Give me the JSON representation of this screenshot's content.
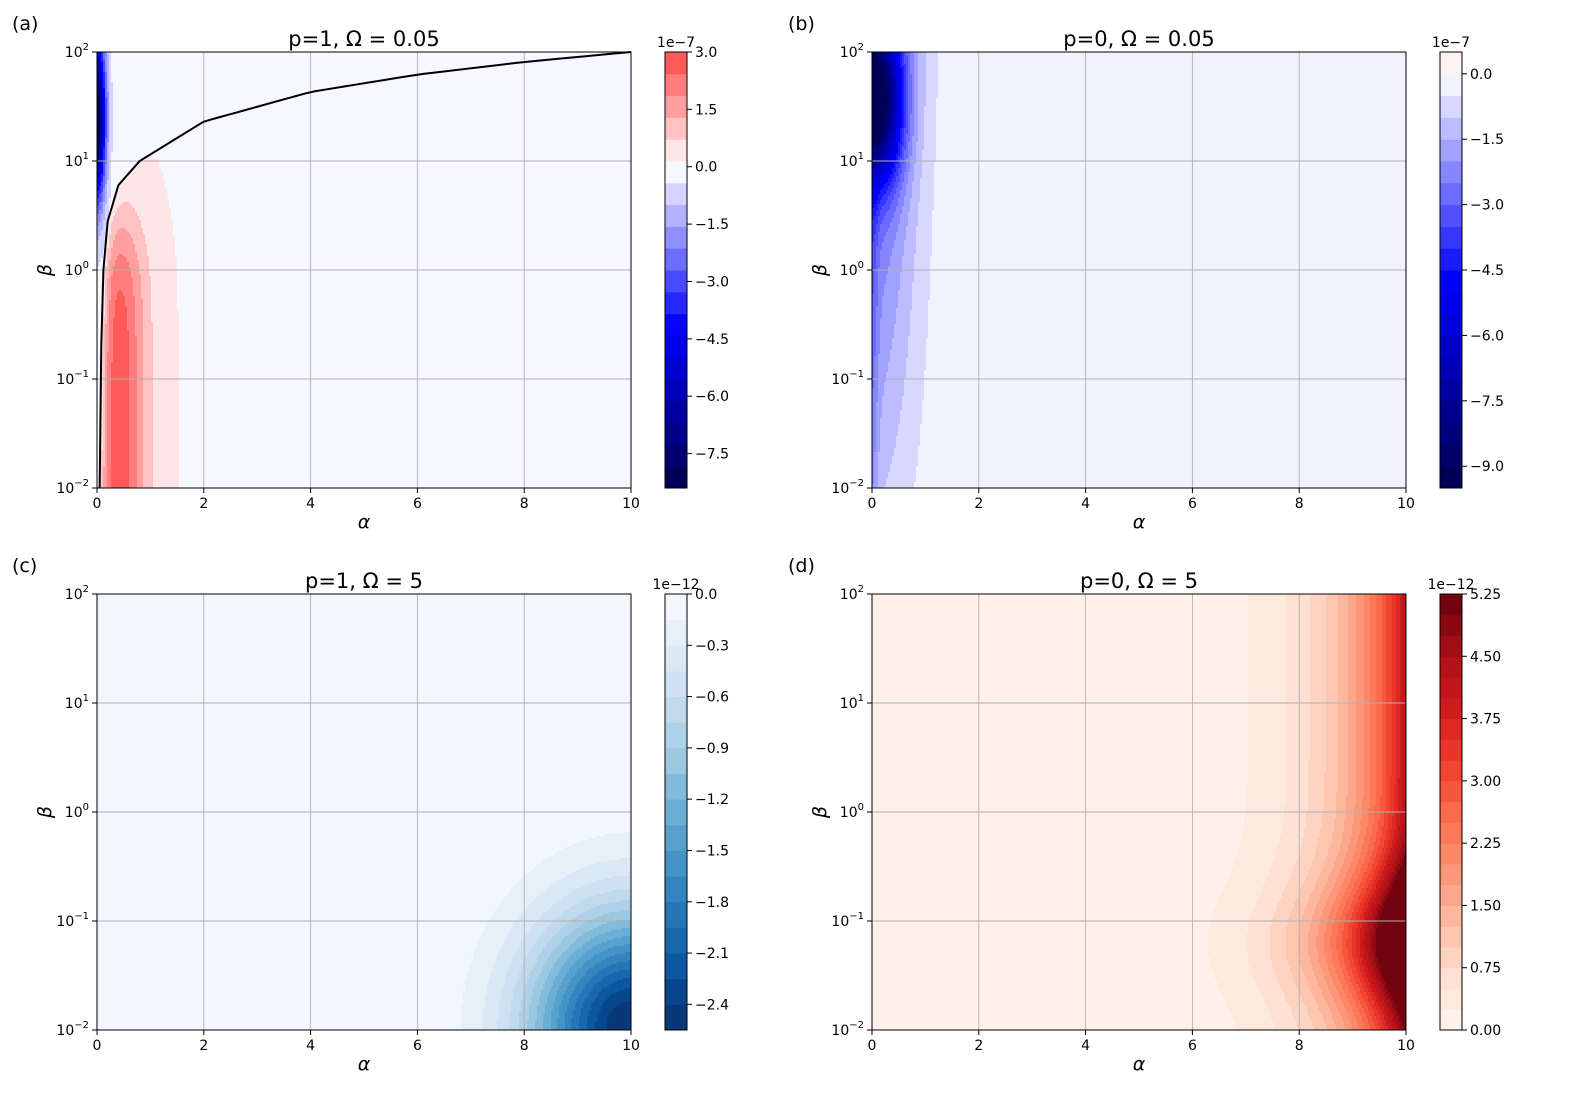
{
  "chart_data": [
    {
      "type": "heatmap",
      "panel_label": "(a)",
      "title": "p=1, Ω = 0.05",
      "xlabel": "α",
      "ylabel": "β",
      "xlim": [
        0,
        10
      ],
      "ylim": [
        0.01,
        100
      ],
      "yscale": "log",
      "x_ticks": [
        "0",
        "2",
        "4",
        "6",
        "8",
        "10"
      ],
      "y_ticks": [
        {
          "base": "10",
          "exp": "−2"
        },
        {
          "base": "10",
          "exp": "−1"
        },
        {
          "base": "10",
          "exp": "0"
        },
        {
          "base": "10",
          "exp": "1"
        },
        {
          "base": "10",
          "exp": "2"
        }
      ],
      "grid": true,
      "colormap": "seismic",
      "colorbar": {
        "multiplier": "1e−7",
        "range": [
          -8.4,
          3.0
        ],
        "ticks": [
          3.0,
          1.5,
          0.0,
          -1.5,
          -3.0,
          -4.5,
          -6.0,
          -7.5
        ],
        "tick_labels": [
          "3.0",
          "1.5",
          "0.0",
          "−1.5",
          "−3.0",
          "−4.5",
          "−6.0",
          "−7.5"
        ],
        "levels": 20
      },
      "zero_contour": {
        "color": "#000000",
        "points": [
          [
            0.05,
            0.01
          ],
          [
            0.08,
            0.2
          ],
          [
            0.12,
            1
          ],
          [
            0.2,
            2.8
          ],
          [
            0.4,
            6
          ],
          [
            0.8,
            10
          ],
          [
            2,
            23
          ],
          [
            4,
            43
          ],
          [
            6,
            62
          ],
          [
            8,
            81
          ],
          [
            10,
            100
          ]
        ]
      },
      "regions": [
        {
          "sign": "positive",
          "description": "α > zero contour",
          "peak": [
            0.35,
            0.03
          ],
          "peak_value": 3.0
        },
        {
          "sign": "negative",
          "description": "small α, large β",
          "peak": [
            0.02,
            25
          ],
          "peak_value": -8.4
        }
      ]
    },
    {
      "type": "heatmap",
      "panel_label": "(b)",
      "title": "p=0, Ω = 0.05",
      "xlabel": "α",
      "ylabel": "β",
      "xlim": [
        0,
        10
      ],
      "ylim": [
        0.01,
        100
      ],
      "yscale": "log",
      "x_ticks": [
        "0",
        "2",
        "4",
        "6",
        "8",
        "10"
      ],
      "y_ticks": [
        {
          "base": "10",
          "exp": "−2"
        },
        {
          "base": "10",
          "exp": "−1"
        },
        {
          "base": "10",
          "exp": "0"
        },
        {
          "base": "10",
          "exp": "1"
        },
        {
          "base": "10",
          "exp": "2"
        }
      ],
      "grid": true,
      "colormap": "seismic",
      "colorbar": {
        "multiplier": "1e−7",
        "range": [
          -9.5,
          0.5
        ],
        "ticks": [
          0.0,
          -1.5,
          -3.0,
          -4.5,
          -6.0,
          -7.5,
          -9.0
        ],
        "tick_labels": [
          "0.0",
          "−1.5",
          "−3.0",
          "−4.5",
          "−6.0",
          "−7.5",
          "−9.0"
        ],
        "levels": 20
      },
      "regions": [
        {
          "sign": "negative",
          "description": "small α, large β",
          "peak": [
            0.1,
            35
          ],
          "peak_value": -9.5
        }
      ]
    },
    {
      "type": "heatmap",
      "panel_label": "(c)",
      "title": "p=1, Ω = 5",
      "xlabel": "α",
      "ylabel": "β",
      "xlim": [
        0,
        10
      ],
      "ylim": [
        0.01,
        100
      ],
      "yscale": "log",
      "x_ticks": [
        "0",
        "2",
        "4",
        "6",
        "8",
        "10"
      ],
      "y_ticks": [
        {
          "base": "10",
          "exp": "−2"
        },
        {
          "base": "10",
          "exp": "−1"
        },
        {
          "base": "10",
          "exp": "0"
        },
        {
          "base": "10",
          "exp": "1"
        },
        {
          "base": "10",
          "exp": "2"
        }
      ],
      "grid": true,
      "colormap": "Blues_r",
      "colorbar": {
        "multiplier": "1e−12",
        "range": [
          -2.55,
          0.0
        ],
        "ticks": [
          0.0,
          -0.3,
          -0.6,
          -0.9,
          -1.2,
          -1.5,
          -1.8,
          -2.1,
          -2.4
        ],
        "tick_labels": [
          "0.0",
          "−0.3",
          "−0.6",
          "−0.9",
          "−1.2",
          "−1.5",
          "−1.8",
          "−2.1",
          "−2.4"
        ],
        "levels": 17
      },
      "regions": [
        {
          "sign": "negative",
          "description": "large α, small β",
          "peak": [
            10,
            0.01
          ],
          "peak_value": -2.55
        }
      ]
    },
    {
      "type": "heatmap",
      "panel_label": "(d)",
      "title": "p=0, Ω = 5",
      "xlabel": "α",
      "ylabel": "β",
      "xlim": [
        0,
        10
      ],
      "ylim": [
        0.01,
        100
      ],
      "yscale": "log",
      "x_ticks": [
        "0",
        "2",
        "4",
        "6",
        "8",
        "10"
      ],
      "y_ticks": [
        {
          "base": "10",
          "exp": "−2"
        },
        {
          "base": "10",
          "exp": "−1"
        },
        {
          "base": "10",
          "exp": "0"
        },
        {
          "base": "10",
          "exp": "1"
        },
        {
          "base": "10",
          "exp": "2"
        }
      ],
      "grid": true,
      "colormap": "Reds",
      "colorbar": {
        "multiplier": "1e−12",
        "range": [
          0.0,
          5.25
        ],
        "ticks": [
          5.25,
          4.5,
          3.75,
          3.0,
          2.25,
          1.5,
          0.75,
          0.0
        ],
        "tick_labels": [
          "5.25",
          "4.50",
          "3.75",
          "3.00",
          "2.25",
          "1.50",
          "0.75",
          "0.00"
        ],
        "levels": 21
      },
      "regions": [
        {
          "sign": "positive",
          "description": "large α, all β",
          "peak": [
            10,
            10
          ],
          "peak_value": 5.25
        }
      ]
    }
  ]
}
